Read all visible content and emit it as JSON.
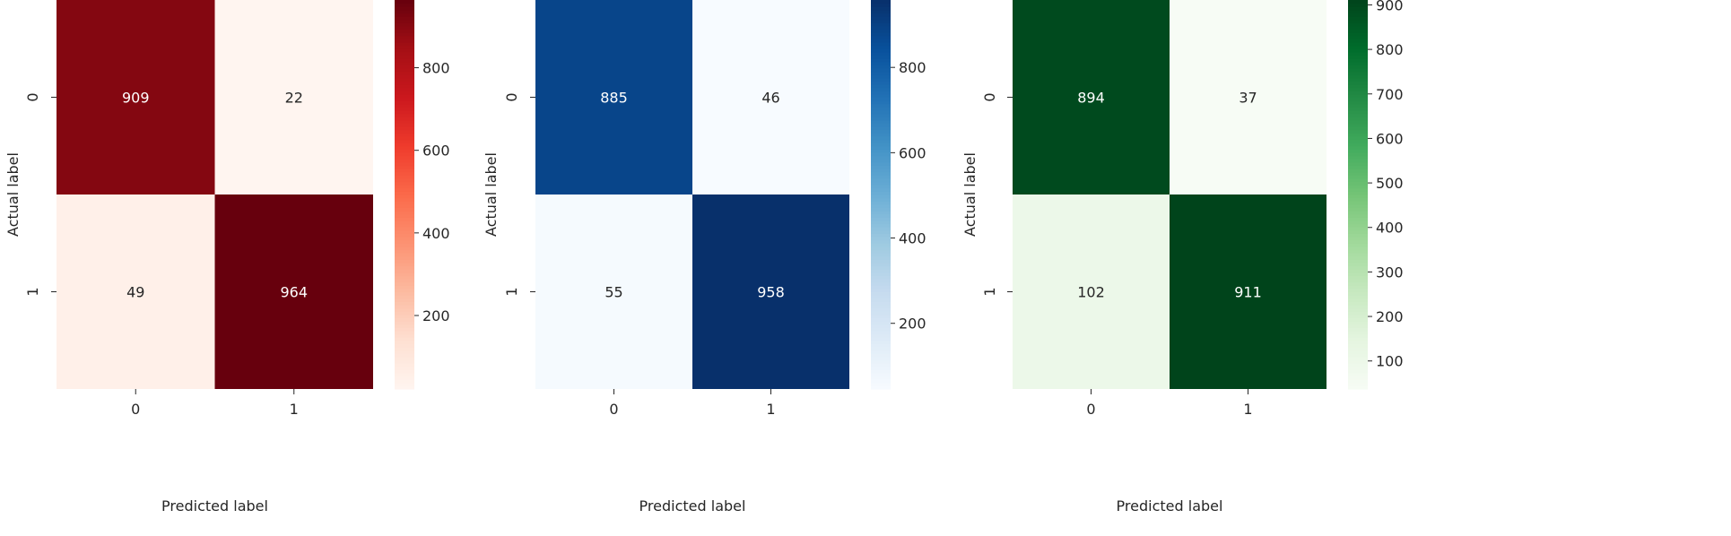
{
  "chart_data": [
    {
      "type": "heatmap",
      "colormap": "Reds",
      "xlabel": "Predicted label",
      "ylabel": "Actual label",
      "x_categories": [
        "0",
        "1"
      ],
      "y_categories": [
        "0",
        "1"
      ],
      "values": [
        [
          909,
          22
        ],
        [
          49,
          964
        ]
      ],
      "colorbar": {
        "ticks": [
          200,
          400,
          600,
          800
        ],
        "range": [
          22,
          964
        ]
      }
    },
    {
      "type": "heatmap",
      "colormap": "Blues",
      "xlabel": "Predicted label",
      "ylabel": "Actual label",
      "x_categories": [
        "0",
        "1"
      ],
      "y_categories": [
        "0",
        "1"
      ],
      "values": [
        [
          885,
          46
        ],
        [
          55,
          958
        ]
      ],
      "colorbar": {
        "ticks": [
          200,
          400,
          600,
          800
        ],
        "range": [
          46,
          958
        ]
      }
    },
    {
      "type": "heatmap",
      "colormap": "Greens",
      "xlabel": "Predicted label",
      "ylabel": "Actual label",
      "x_categories": [
        "0",
        "1"
      ],
      "y_categories": [
        "0",
        "1"
      ],
      "values": [
        [
          894,
          37
        ],
        [
          102,
          911
        ]
      ],
      "colorbar": {
        "ticks": [
          100,
          200,
          300,
          400,
          500,
          600,
          700,
          800,
          900
        ],
        "range": [
          37,
          911
        ]
      }
    }
  ],
  "colormaps": {
    "Reds": [
      "#fff5f0",
      "#fee0d2",
      "#fcbba1",
      "#fc9272",
      "#fb6a4a",
      "#ef3b2c",
      "#cb181d",
      "#a50f15",
      "#67000d"
    ],
    "Blues": [
      "#f7fbff",
      "#deebf7",
      "#c6dbef",
      "#9ecae1",
      "#6baed6",
      "#4292c6",
      "#2171b5",
      "#08519c",
      "#08306b"
    ],
    "Greens": [
      "#f7fcf5",
      "#e5f5e0",
      "#c7e9c0",
      "#a1d99b",
      "#74c476",
      "#41ab5d",
      "#238b45",
      "#006d2c",
      "#00441b"
    ]
  }
}
